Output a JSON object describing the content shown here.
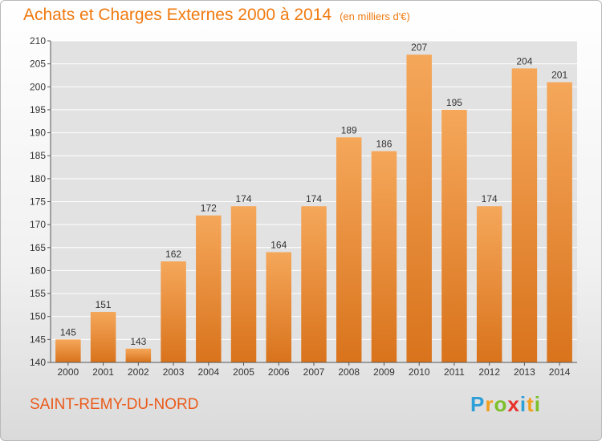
{
  "header": {
    "title": "Achats et Charges Externes 2000 à 2014",
    "unit": "(en milliers d'€)"
  },
  "footer": {
    "commune": "SAINT-REMY-DU-NORD",
    "logo_letters": [
      {
        "ch": "P",
        "color": "#2f9fd8"
      },
      {
        "ch": "r",
        "color": "#f0a020"
      },
      {
        "ch": "o",
        "color": "#7cbf2a"
      },
      {
        "ch": "x",
        "color": "#e8312a"
      },
      {
        "ch": "i",
        "color": "#2f9fd8"
      },
      {
        "ch": "t",
        "color": "#f0a020"
      },
      {
        "ch": "i",
        "color": "#7cbf2a"
      }
    ]
  },
  "colors": {
    "accent": "#f07a10",
    "bar_top": "#f5a75a",
    "bar_bottom": "#d9731c",
    "grid": "#ffffff",
    "plot_bg": "#e2e2e2"
  },
  "chart_data": {
    "type": "bar",
    "categories": [
      "2000",
      "2001",
      "2002",
      "2003",
      "2004",
      "2005",
      "2006",
      "2007",
      "2008",
      "2009",
      "2010",
      "2011",
      "2012",
      "2013",
      "2014"
    ],
    "values": [
      145,
      151,
      143,
      162,
      172,
      174,
      164,
      174,
      189,
      186,
      207,
      195,
      174,
      204,
      201
    ],
    "ylim": [
      140,
      210
    ],
    "yticks": [
      140,
      145,
      150,
      155,
      160,
      165,
      170,
      175,
      180,
      185,
      190,
      195,
      200,
      205,
      210
    ],
    "grid": true,
    "xlabel": "",
    "ylabel": ""
  }
}
